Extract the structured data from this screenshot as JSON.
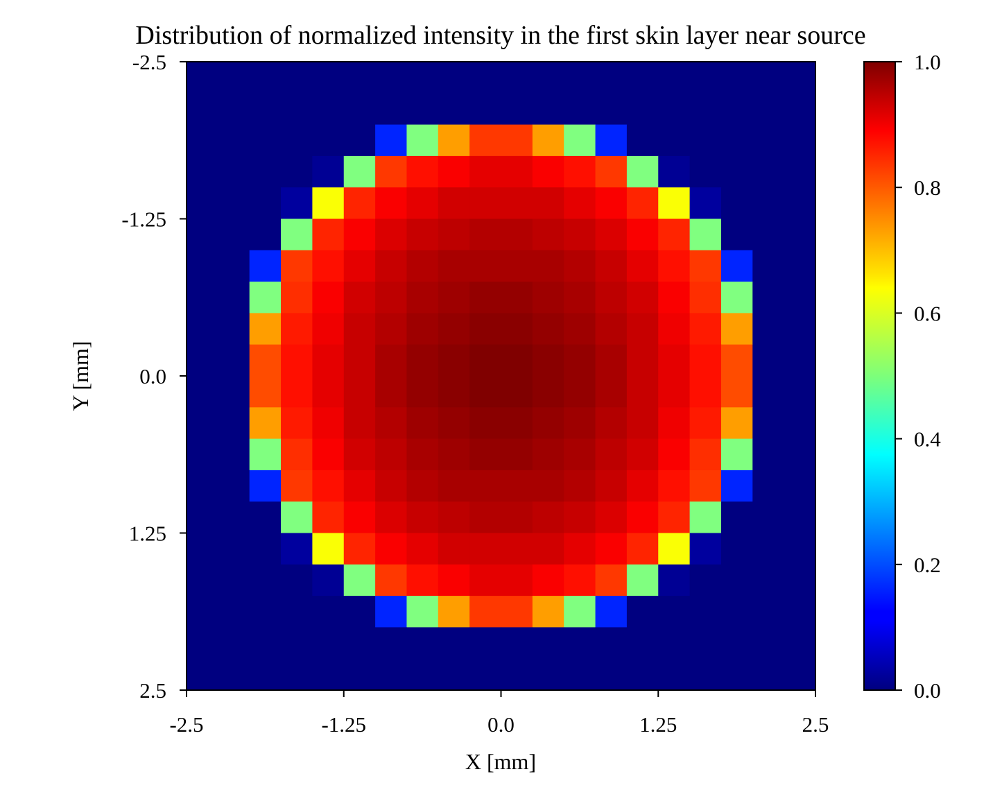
{
  "chart_data": {
    "type": "heatmap",
    "title": "Distribution of normalized intensity in the first skin layer near source",
    "xlabel": "X [mm]",
    "ylabel": "Y [mm]",
    "xlim": [
      -2.5,
      2.5
    ],
    "ylim": [
      -2.5,
      2.5
    ],
    "y_axis_inverted": true,
    "x_ticks": [
      "-2.5",
      "-1.25",
      "0.0",
      "1.25",
      "2.5"
    ],
    "y_ticks": [
      "-2.5",
      "-1.25",
      "0.0",
      "1.25",
      "2.5"
    ],
    "colormap": "jet",
    "colorbar": {
      "min": 0.0,
      "max": 1.0,
      "ticks": [
        "0.0",
        "0.2",
        "0.4",
        "0.6",
        "0.8",
        "1.0"
      ]
    },
    "grid": false,
    "rows": 20,
    "cols": 20,
    "values": [
      [
        0,
        0,
        0,
        0,
        0,
        0,
        0,
        0,
        0,
        0,
        0,
        0,
        0,
        0,
        0,
        0,
        0,
        0,
        0,
        0
      ],
      [
        0,
        0,
        0,
        0,
        0,
        0,
        0,
        0,
        0,
        0,
        0,
        0,
        0,
        0,
        0,
        0,
        0,
        0,
        0,
        0
      ],
      [
        0,
        0,
        0,
        0,
        0,
        0,
        0.16,
        0.5,
        0.72,
        0.82,
        0.82,
        0.72,
        0.5,
        0.16,
        0,
        0,
        0,
        0,
        0,
        0
      ],
      [
        0,
        0,
        0,
        0,
        0.02,
        0.5,
        0.82,
        0.86,
        0.88,
        0.9,
        0.9,
        0.88,
        0.86,
        0.82,
        0.5,
        0.02,
        0,
        0,
        0,
        0
      ],
      [
        0,
        0,
        0,
        0.03,
        0.62,
        0.84,
        0.88,
        0.9,
        0.92,
        0.92,
        0.92,
        0.92,
        0.9,
        0.88,
        0.84,
        0.62,
        0.03,
        0,
        0,
        0
      ],
      [
        0,
        0,
        0,
        0.5,
        0.84,
        0.88,
        0.91,
        0.93,
        0.94,
        0.95,
        0.95,
        0.94,
        0.93,
        0.91,
        0.88,
        0.84,
        0.5,
        0,
        0,
        0
      ],
      [
        0,
        0,
        0.16,
        0.82,
        0.86,
        0.9,
        0.93,
        0.95,
        0.96,
        0.96,
        0.96,
        0.96,
        0.95,
        0.93,
        0.9,
        0.86,
        0.82,
        0.16,
        0,
        0
      ],
      [
        0,
        0,
        0.5,
        0.83,
        0.88,
        0.92,
        0.94,
        0.96,
        0.97,
        0.98,
        0.98,
        0.97,
        0.96,
        0.94,
        0.92,
        0.88,
        0.83,
        0.5,
        0,
        0
      ],
      [
        0,
        0,
        0.72,
        0.85,
        0.89,
        0.93,
        0.95,
        0.97,
        0.98,
        0.99,
        0.99,
        0.98,
        0.97,
        0.95,
        0.93,
        0.89,
        0.85,
        0.72,
        0,
        0
      ],
      [
        0,
        0,
        0.8,
        0.86,
        0.9,
        0.93,
        0.96,
        0.98,
        0.99,
        1.0,
        1.0,
        0.99,
        0.98,
        0.96,
        0.93,
        0.9,
        0.86,
        0.8,
        0,
        0
      ],
      [
        0,
        0,
        0.8,
        0.86,
        0.9,
        0.93,
        0.96,
        0.98,
        0.99,
        1.0,
        1.0,
        0.99,
        0.98,
        0.96,
        0.93,
        0.9,
        0.86,
        0.8,
        0,
        0
      ],
      [
        0,
        0,
        0.72,
        0.85,
        0.89,
        0.93,
        0.95,
        0.97,
        0.98,
        0.99,
        0.99,
        0.98,
        0.97,
        0.95,
        0.93,
        0.89,
        0.85,
        0.72,
        0,
        0
      ],
      [
        0,
        0,
        0.5,
        0.83,
        0.88,
        0.92,
        0.94,
        0.96,
        0.97,
        0.98,
        0.98,
        0.97,
        0.96,
        0.94,
        0.92,
        0.88,
        0.83,
        0.5,
        0,
        0
      ],
      [
        0,
        0,
        0.16,
        0.82,
        0.86,
        0.9,
        0.93,
        0.95,
        0.96,
        0.96,
        0.96,
        0.96,
        0.95,
        0.93,
        0.9,
        0.86,
        0.82,
        0.16,
        0,
        0
      ],
      [
        0,
        0,
        0,
        0.5,
        0.84,
        0.88,
        0.91,
        0.93,
        0.94,
        0.95,
        0.95,
        0.94,
        0.93,
        0.91,
        0.88,
        0.84,
        0.5,
        0,
        0,
        0
      ],
      [
        0,
        0,
        0,
        0.03,
        0.62,
        0.84,
        0.88,
        0.9,
        0.92,
        0.92,
        0.92,
        0.92,
        0.9,
        0.88,
        0.84,
        0.62,
        0.03,
        0,
        0,
        0
      ],
      [
        0,
        0,
        0,
        0,
        0.02,
        0.5,
        0.82,
        0.86,
        0.88,
        0.9,
        0.9,
        0.88,
        0.86,
        0.82,
        0.5,
        0.02,
        0,
        0,
        0,
        0
      ],
      [
        0,
        0,
        0,
        0,
        0,
        0,
        0.16,
        0.5,
        0.72,
        0.82,
        0.82,
        0.72,
        0.5,
        0.16,
        0,
        0,
        0,
        0,
        0,
        0
      ],
      [
        0,
        0,
        0,
        0,
        0,
        0,
        0,
        0,
        0,
        0,
        0,
        0,
        0,
        0,
        0,
        0,
        0,
        0,
        0,
        0
      ],
      [
        0,
        0,
        0,
        0,
        0,
        0,
        0,
        0,
        0,
        0,
        0,
        0,
        0,
        0,
        0,
        0,
        0,
        0,
        0,
        0
      ]
    ]
  }
}
